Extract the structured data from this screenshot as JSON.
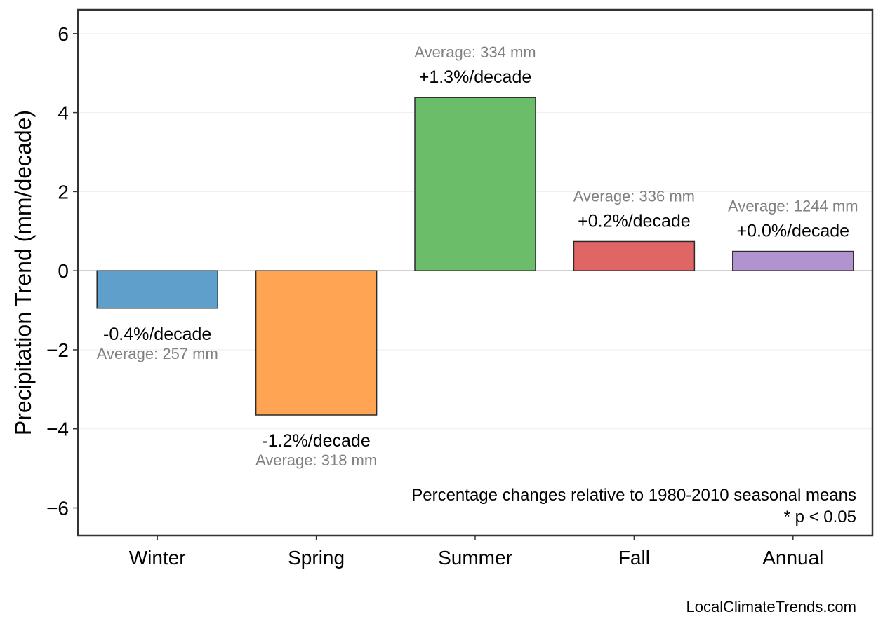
{
  "chart_data": {
    "type": "bar",
    "categories": [
      "Winter",
      "Spring",
      "Summer",
      "Fall",
      "Annual"
    ],
    "values": [
      -0.95,
      -3.65,
      4.38,
      0.74,
      0.49
    ],
    "pct_labels": [
      "-0.4%/decade",
      "-1.2%/decade",
      "+1.3%/decade",
      "+0.2%/decade",
      "+0.0%/decade"
    ],
    "avg_labels": [
      "Average: 257 mm",
      "Average: 318 mm",
      "Average: 334 mm",
      "Average: 336 mm",
      "Average: 1244 mm"
    ],
    "colors": [
      "#5f9fcc",
      "#fea452",
      "#6bbd69",
      "#e06666",
      "#b193cf"
    ],
    "ylabel": "Precipitation Trend (mm/decade)",
    "xlabel": "",
    "title": "",
    "ylim": [
      -6.7,
      6.6
    ],
    "yticks": [
      6,
      4,
      2,
      0,
      -2,
      -4,
      -6
    ],
    "ytick_labels": [
      "6",
      "4",
      "2",
      "0",
      "−2",
      "−4",
      "−6"
    ],
    "grid": true,
    "legend": "none",
    "note_line1": "Percentage changes relative to 1980-2010 seasonal means",
    "note_line2": "* p < 0.05",
    "credit": "LocalClimateTrends.com"
  }
}
